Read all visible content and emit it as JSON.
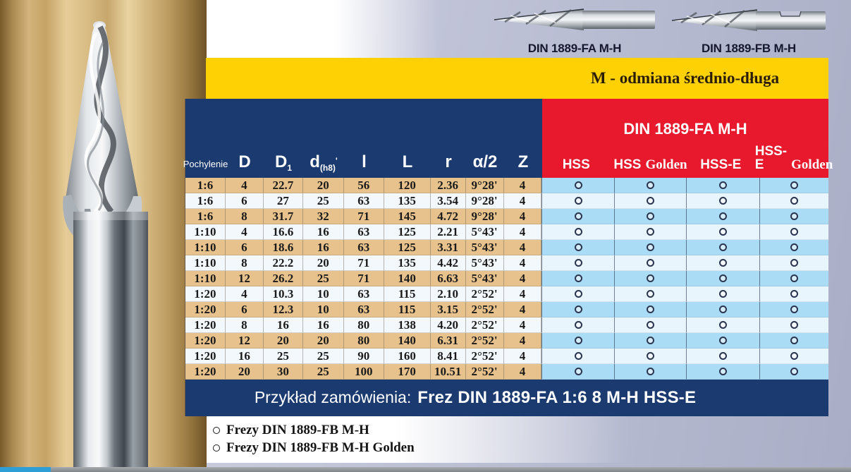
{
  "tools_top": [
    {
      "label": "DIN 1889-FA M-H"
    },
    {
      "label": "DIN 1889-FB M-H"
    }
  ],
  "banner": {
    "text": "M - odmiana średnio-długa"
  },
  "table": {
    "left_headers": [
      {
        "main": "Pochylenie",
        "sub": "",
        "suffix": ""
      },
      {
        "main": "D",
        "sub": "",
        "suffix": ""
      },
      {
        "main": "D",
        "sub": "1",
        "suffix": ""
      },
      {
        "main": "d",
        "sub": "(h8)",
        "suffix": "'"
      },
      {
        "main": "l",
        "sub": "",
        "suffix": ""
      },
      {
        "main": "L",
        "sub": "",
        "suffix": ""
      },
      {
        "main": "r",
        "sub": "",
        "suffix": ""
      },
      {
        "main": "α/2",
        "sub": "",
        "suffix": ""
      },
      {
        "main": "Z",
        "sub": "",
        "suffix": ""
      }
    ],
    "red_header": {
      "title": "DIN 1889-FA M-H",
      "columns": [
        {
          "bold": "HSS",
          "light": ""
        },
        {
          "bold": "HSS",
          "light": "Golden"
        },
        {
          "bold": "HSS-E",
          "light": ""
        },
        {
          "bold": "HSS-E",
          "light": "Golden"
        }
      ]
    },
    "rows": [
      [
        "1:6",
        "4",
        "22.7",
        "20",
        "56",
        "120",
        "2.36",
        "9°28'",
        "4"
      ],
      [
        "1:6",
        "6",
        "27",
        "25",
        "63",
        "135",
        "3.54",
        "9°28'",
        "4"
      ],
      [
        "1:6",
        "8",
        "31.7",
        "32",
        "71",
        "145",
        "4.72",
        "9°28'",
        "4"
      ],
      [
        "1:10",
        "4",
        "16.6",
        "16",
        "63",
        "125",
        "2.21",
        "5°43'",
        "4"
      ],
      [
        "1:10",
        "6",
        "18.6",
        "16",
        "63",
        "125",
        "3.31",
        "5°43'",
        "4"
      ],
      [
        "1:10",
        "8",
        "22.2",
        "20",
        "71",
        "135",
        "4.42",
        "5°43'",
        "4"
      ],
      [
        "1:10",
        "12",
        "26.2",
        "25",
        "71",
        "140",
        "6.63",
        "5°43'",
        "4"
      ],
      [
        "1:20",
        "4",
        "10.3",
        "10",
        "63",
        "115",
        "2.10",
        "2°52'",
        "4"
      ],
      [
        "1:20",
        "6",
        "12.3",
        "10",
        "63",
        "115",
        "3.15",
        "2°52'",
        "4"
      ],
      [
        "1:20",
        "8",
        "16",
        "16",
        "80",
        "138",
        "4.20",
        "2°52'",
        "4"
      ],
      [
        "1:20",
        "12",
        "20",
        "20",
        "80",
        "140",
        "6.31",
        "2°52'",
        "4"
      ],
      [
        "1:20",
        "16",
        "25",
        "25",
        "90",
        "160",
        "8.41",
        "2°52'",
        "4"
      ],
      [
        "1:20",
        "20",
        "30",
        "25",
        "100",
        "170",
        "10.51",
        "2°52'",
        "4"
      ]
    ],
    "availability_symbol": "○"
  },
  "order_bar": {
    "prefix": "Przykład zamówienia:",
    "code": "Frez DIN 1889-FA 1:6 8 M-H HSS-E"
  },
  "footer_notes": [
    "Frezy DIN 1889-FB M-H",
    "Frezy DIN 1889-FB M-H Golden"
  ],
  "colors": {
    "navy": "#1b3a70",
    "red": "#e8192c",
    "yellow": "#fdd104",
    "tan_row": "#e7c28c",
    "pale_row": "#f3f8fc",
    "blue_row": "#abdcf5",
    "pale_blue_row": "#e8f5fd",
    "gold_bg": "#c7a76c",
    "lavender_bg": "#c6c9dc",
    "strip_blue": "#2d9ed6",
    "strip_gray": "#8f9499"
  }
}
